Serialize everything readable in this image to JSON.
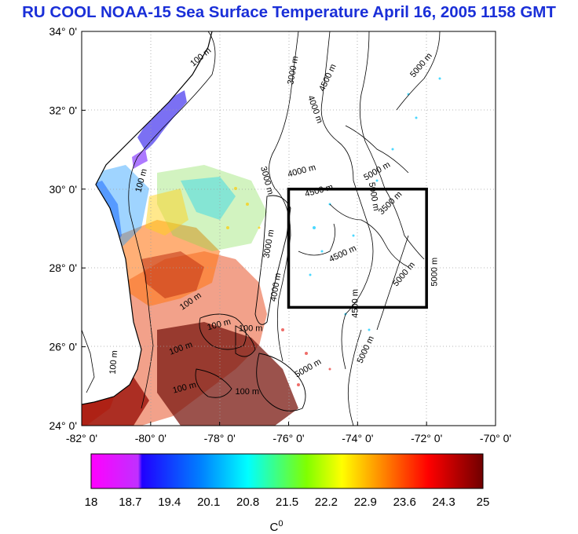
{
  "title": "RU COOL  NOAA-15 Sea Surface Temperature April 16, 2005 1158 GMT",
  "map": {
    "lon_range": [
      -82,
      -70
    ],
    "lat_range": [
      24,
      34
    ],
    "x_ticks": [
      "-82° 0'",
      "-80° 0'",
      "-78° 0'",
      "-76° 0'",
      "-74° 0'",
      "-72° 0'",
      "-70° 0'"
    ],
    "y_ticks": [
      "34° 0'",
      "32° 0'",
      "30° 0'",
      "28° 0'",
      "26° 0'",
      "24° 0'"
    ],
    "study_box": {
      "lon": [
        -76,
        -72
      ],
      "lat": [
        27,
        30
      ]
    },
    "contour_labels": [
      {
        "text": "100 m",
        "lon": -78.5,
        "lat": 33.3,
        "rot": -40
      },
      {
        "text": "3000 m",
        "lon": -75.8,
        "lat": 33.0,
        "rot": -80
      },
      {
        "text": "4500 m",
        "lon": -74.8,
        "lat": 32.8,
        "rot": -65
      },
      {
        "text": "5000 m",
        "lon": -72.1,
        "lat": 33.1,
        "rot": -50
      },
      {
        "text": "4000 m",
        "lon": -75.3,
        "lat": 32.0,
        "rot": 70
      },
      {
        "text": "4000 m",
        "lon": -75.6,
        "lat": 30.4,
        "rot": -15
      },
      {
        "text": "5000 m",
        "lon": -73.4,
        "lat": 30.4,
        "rot": -30
      },
      {
        "text": "3000 m",
        "lon": -76.7,
        "lat": 30.2,
        "rot": 75
      },
      {
        "text": "4500 m",
        "lon": -75.1,
        "lat": 29.9,
        "rot": -15
      },
      {
        "text": "5000 m",
        "lon": -73.6,
        "lat": 29.8,
        "rot": 80
      },
      {
        "text": "3500 m",
        "lon": -73.0,
        "lat": 29.6,
        "rot": -45
      },
      {
        "text": "100 m",
        "lon": -80.2,
        "lat": 30.2,
        "rot": -75
      },
      {
        "text": "4500 m",
        "lon": -74.4,
        "lat": 28.3,
        "rot": -25
      },
      {
        "text": "5000 m",
        "lon": -72.6,
        "lat": 27.8,
        "rot": -50
      },
      {
        "text": "5000 m",
        "lon": -71.7,
        "lat": 27.9,
        "rot": -90
      },
      {
        "text": "4500 m",
        "lon": -74.0,
        "lat": 27.1,
        "rot": -90
      },
      {
        "text": "100 m",
        "lon": -78.8,
        "lat": 27.1,
        "rot": -35
      },
      {
        "text": "100 m",
        "lon": -78.0,
        "lat": 26.5,
        "rot": -15
      },
      {
        "text": "100 m",
        "lon": -77.1,
        "lat": 26.4,
        "rot": 0
      },
      {
        "text": "100 m",
        "lon": -79.1,
        "lat": 25.9,
        "rot": -20
      },
      {
        "text": "100 m",
        "lon": -81.0,
        "lat": 25.6,
        "rot": -85
      },
      {
        "text": "5000 m",
        "lon": -73.7,
        "lat": 25.9,
        "rot": -65
      },
      {
        "text": "100 m",
        "lon": -79.0,
        "lat": 24.9,
        "rot": -15
      },
      {
        "text": "100 m",
        "lon": -77.2,
        "lat": 24.8,
        "rot": 0
      },
      {
        "text": "4000 m",
        "lon": -76.3,
        "lat": 27.5,
        "rot": -80
      },
      {
        "text": "3000 m",
        "lon": -76.5,
        "lat": 28.6,
        "rot": -80
      },
      {
        "text": "5000 m",
        "lon": -75.4,
        "lat": 25.4,
        "rot": -30
      }
    ]
  },
  "colorbar": {
    "ticks": [
      "18",
      "18.7",
      "19.4",
      "20.1",
      "20.8",
      "21.5",
      "22.2",
      "22.9",
      "23.6",
      "24.3",
      "25"
    ],
    "unit": "C",
    "unit_sup": "0",
    "min": 18,
    "max": 25,
    "colors": [
      "#ff00ff",
      "#0000ff",
      "#00ffff",
      "#00ff00",
      "#ffff00",
      "#ff8000",
      "#ff0000",
      "#800000"
    ]
  },
  "colors": {
    "title": "#1a2fd8",
    "grid": "#a0a0a0",
    "box": "#000000"
  }
}
